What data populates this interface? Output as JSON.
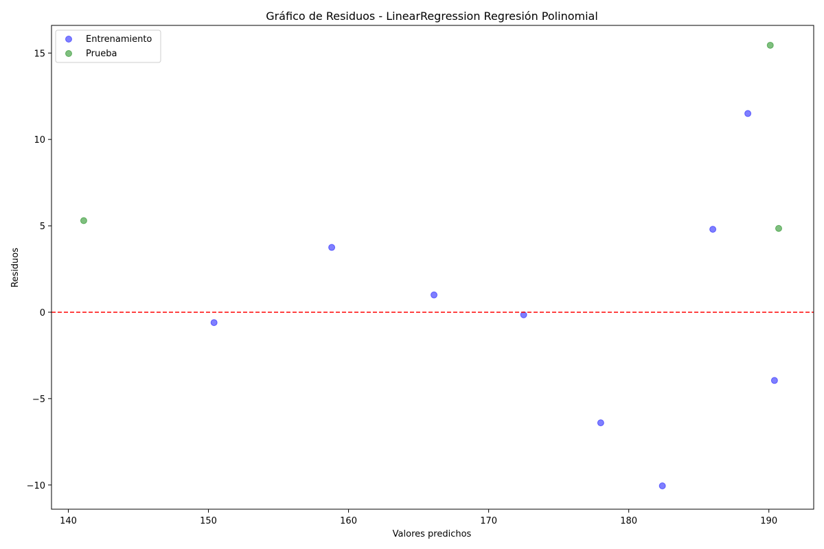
{
  "chart_data": {
    "type": "scatter",
    "title": "Gráfico de Residuos - LinearRegression Regresión Polinomial",
    "xlabel": "Valores predichos",
    "ylabel": "Residuos",
    "xlim": [
      138.8,
      193.2
    ],
    "ylim": [
      -11.4,
      16.6
    ],
    "xticks": [
      140,
      150,
      160,
      170,
      180,
      190
    ],
    "yticks": [
      -10,
      -5,
      0,
      5,
      10,
      15
    ],
    "ytick_labels": [
      "−10",
      "−5",
      "0",
      "5",
      "10",
      "15"
    ],
    "xtick_labels": [
      "140",
      "150",
      "160",
      "170",
      "180",
      "190"
    ],
    "grid": false,
    "legend_position": "top-left",
    "reference_line": {
      "y": 0,
      "style": "dashed",
      "color": "#ff0000"
    },
    "series": [
      {
        "name": "Entrenamiento",
        "color": "#0000ff",
        "points": [
          {
            "x": 150.4,
            "y": -0.6
          },
          {
            "x": 158.8,
            "y": 3.75
          },
          {
            "x": 166.1,
            "y": 1.0
          },
          {
            "x": 172.5,
            "y": -0.15
          },
          {
            "x": 178.0,
            "y": -6.4
          },
          {
            "x": 182.4,
            "y": -10.05
          },
          {
            "x": 186.0,
            "y": 4.8
          },
          {
            "x": 188.5,
            "y": 11.5
          },
          {
            "x": 190.4,
            "y": -3.95
          }
        ]
      },
      {
        "name": "Prueba",
        "color": "#008000",
        "points": [
          {
            "x": 141.1,
            "y": 5.3
          },
          {
            "x": 190.1,
            "y": 15.45
          },
          {
            "x": 190.7,
            "y": 4.85
          }
        ]
      }
    ]
  }
}
